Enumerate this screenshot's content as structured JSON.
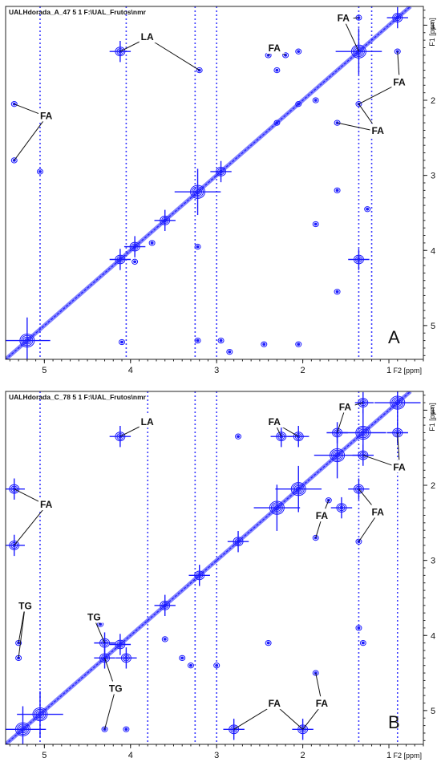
{
  "chart_data": [
    {
      "type": "scatter",
      "panel_label": "A",
      "header": "UALHdorada_A_47  5  1  F:\\UAL_Frutos\\nmr",
      "xlabel": "F2 [ppm]",
      "ylabel": "F1 [ppm]",
      "xlim": [
        5.45,
        0.6
      ],
      "ylim": [
        0.75,
        5.45
      ],
      "xticks": [
        "5",
        "4",
        "3",
        "2",
        "1"
      ],
      "yticks": [
        "1",
        "2",
        "3",
        "4",
        "5"
      ],
      "series_color": "#1a1aff",
      "diagonal_peaks": [
        {
          "x": 5.2,
          "y": 5.2,
          "size": 3
        },
        {
          "x": 4.12,
          "y": 4.12,
          "size": 2
        },
        {
          "x": 3.95,
          "y": 3.95,
          "size": 2
        },
        {
          "x": 3.6,
          "y": 3.6,
          "size": 2
        },
        {
          "x": 3.22,
          "y": 3.22,
          "size": 3
        },
        {
          "x": 2.95,
          "y": 2.95,
          "size": 2
        },
        {
          "x": 2.3,
          "y": 2.3,
          "size": 1
        },
        {
          "x": 2.05,
          "y": 2.05,
          "size": 1
        },
        {
          "x": 1.35,
          "y": 1.35,
          "size": 3
        },
        {
          "x": 0.9,
          "y": 0.9,
          "size": 2
        }
      ],
      "cross_peaks": [
        {
          "x": 4.12,
          "y": 1.35,
          "size": 2
        },
        {
          "x": 1.35,
          "y": 4.12,
          "size": 2
        },
        {
          "x": 2.05,
          "y": 1.35,
          "size": 1
        },
        {
          "x": 1.35,
          "y": 2.05,
          "size": 1
        },
        {
          "x": 0.9,
          "y": 1.35,
          "size": 1
        },
        {
          "x": 1.35,
          "y": 0.9,
          "size": 1
        },
        {
          "x": 2.3,
          "y": 1.6,
          "size": 1
        },
        {
          "x": 1.6,
          "y": 2.3,
          "size": 1
        },
        {
          "x": 5.35,
          "y": 2.05,
          "size": 1
        },
        {
          "x": 5.35,
          "y": 2.8,
          "size": 1
        },
        {
          "x": 5.05,
          "y": 2.95,
          "size": 1
        },
        {
          "x": 2.85,
          "y": 5.35,
          "size": 1
        },
        {
          "x": 3.22,
          "y": 5.2,
          "size": 1
        },
        {
          "x": 2.95,
          "y": 5.2,
          "size": 1
        },
        {
          "x": 3.95,
          "y": 4.15,
          "size": 1
        },
        {
          "x": 3.75,
          "y": 3.9,
          "size": 1
        },
        {
          "x": 3.22,
          "y": 3.95,
          "size": 1
        },
        {
          "x": 2.2,
          "y": 1.4,
          "size": 1
        },
        {
          "x": 2.4,
          "y": 1.4,
          "size": 1
        },
        {
          "x": 3.2,
          "y": 1.6,
          "size": 1
        },
        {
          "x": 1.6,
          "y": 3.2,
          "size": 1
        },
        {
          "x": 1.85,
          "y": 3.65,
          "size": 1
        },
        {
          "x": 1.25,
          "y": 3.45,
          "size": 1
        },
        {
          "x": 1.6,
          "y": 4.55,
          "size": 1
        },
        {
          "x": 2.05,
          "y": 5.25,
          "size": 1
        },
        {
          "x": 2.45,
          "y": 5.25,
          "size": 1
        },
        {
          "x": 4.1,
          "y": 5.22,
          "size": 1
        },
        {
          "x": 1.85,
          "y": 2.0,
          "size": 1
        }
      ],
      "vertical_streaks": [
        5.05,
        4.05,
        3.25,
        3.0,
        1.35,
        1.2
      ],
      "annotations": [
        {
          "text": "LA",
          "x": 3.88,
          "y": 1.2
        },
        {
          "text": "FA",
          "x": 1.6,
          "y": 0.95
        },
        {
          "text": "FA",
          "x": 2.4,
          "y": 1.35
        },
        {
          "text": "FA",
          "x": 0.95,
          "y": 1.8
        },
        {
          "text": "FA",
          "x": 1.2,
          "y": 2.45
        },
        {
          "text": "FA",
          "x": 5.05,
          "y": 2.25
        }
      ]
    },
    {
      "type": "scatter",
      "panel_label": "B",
      "header": "UALHdorada_C_78  5  1  F:\\UAL_Frutos\\nmr",
      "xlabel": "F2 [ppm]",
      "ylabel": "F1 [ppm]",
      "xlim": [
        5.45,
        0.6
      ],
      "ylim": [
        0.75,
        5.45
      ],
      "xticks": [
        "5",
        "4",
        "3",
        "2",
        "1"
      ],
      "yticks": [
        "1",
        "2",
        "3",
        "4",
        "5"
      ],
      "series_color": "#1a1aff",
      "diagonal_peaks": [
        {
          "x": 5.25,
          "y": 5.25,
          "size": 3
        },
        {
          "x": 5.05,
          "y": 5.05,
          "size": 3
        },
        {
          "x": 4.3,
          "y": 4.3,
          "size": 2
        },
        {
          "x": 4.12,
          "y": 4.12,
          "size": 2
        },
        {
          "x": 3.6,
          "y": 3.6,
          "size": 2
        },
        {
          "x": 3.2,
          "y": 3.2,
          "size": 2
        },
        {
          "x": 2.75,
          "y": 2.75,
          "size": 2
        },
        {
          "x": 2.3,
          "y": 2.3,
          "size": 3
        },
        {
          "x": 2.05,
          "y": 2.05,
          "size": 3
        },
        {
          "x": 1.6,
          "y": 1.6,
          "size": 3
        },
        {
          "x": 1.3,
          "y": 1.3,
          "size": 3
        },
        {
          "x": 0.9,
          "y": 0.9,
          "size": 3
        }
      ],
      "cross_peaks": [
        {
          "x": 4.12,
          "y": 1.35,
          "size": 2
        },
        {
          "x": 5.35,
          "y": 2.05,
          "size": 2
        },
        {
          "x": 5.35,
          "y": 2.8,
          "size": 2
        },
        {
          "x": 5.3,
          "y": 4.1,
          "size": 1
        },
        {
          "x": 5.3,
          "y": 4.3,
          "size": 1
        },
        {
          "x": 4.3,
          "y": 5.25,
          "size": 1
        },
        {
          "x": 4.05,
          "y": 5.25,
          "size": 1
        },
        {
          "x": 2.8,
          "y": 5.25,
          "size": 2
        },
        {
          "x": 2.0,
          "y": 5.25,
          "size": 2
        },
        {
          "x": 2.05,
          "y": 1.35,
          "size": 2
        },
        {
          "x": 1.35,
          "y": 2.05,
          "size": 2
        },
        {
          "x": 1.6,
          "y": 1.3,
          "size": 2
        },
        {
          "x": 1.3,
          "y": 1.6,
          "size": 2
        },
        {
          "x": 0.9,
          "y": 1.3,
          "size": 2
        },
        {
          "x": 1.3,
          "y": 0.9,
          "size": 2
        },
        {
          "x": 1.55,
          "y": 2.3,
          "size": 2
        },
        {
          "x": 1.7,
          "y": 2.2,
          "size": 1
        },
        {
          "x": 2.25,
          "y": 1.35,
          "size": 2
        },
        {
          "x": 1.35,
          "y": 2.75,
          "size": 1
        },
        {
          "x": 2.75,
          "y": 1.35,
          "size": 1
        },
        {
          "x": 1.3,
          "y": 4.1,
          "size": 1
        },
        {
          "x": 3.0,
          "y": 4.4,
          "size": 1
        },
        {
          "x": 3.4,
          "y": 4.3,
          "size": 1
        },
        {
          "x": 3.6,
          "y": 4.05,
          "size": 1
        },
        {
          "x": 2.4,
          "y": 4.1,
          "size": 1
        },
        {
          "x": 1.85,
          "y": 4.5,
          "size": 1
        },
        {
          "x": 1.85,
          "y": 2.7,
          "size": 1
        },
        {
          "x": 1.35,
          "y": 3.9,
          "size": 1
        },
        {
          "x": 4.3,
          "y": 4.1,
          "size": 2
        },
        {
          "x": 4.05,
          "y": 4.3,
          "size": 2
        },
        {
          "x": 4.35,
          "y": 3.85,
          "size": 1
        },
        {
          "x": 3.3,
          "y": 4.4,
          "size": 1
        }
      ],
      "vertical_streaks": [
        5.05,
        3.8,
        3.25,
        3.0,
        1.35,
        0.9
      ],
      "annotations": [
        {
          "text": "LA",
          "x": 3.88,
          "y": 1.2
        },
        {
          "text": "FA",
          "x": 1.58,
          "y": 1.0
        },
        {
          "text": "FA",
          "x": 2.4,
          "y": 1.2
        },
        {
          "text": "FA",
          "x": 0.95,
          "y": 1.8
        },
        {
          "text": "FA",
          "x": 1.2,
          "y": 2.4
        },
        {
          "text": "FA",
          "x": 1.85,
          "y": 2.45
        },
        {
          "text": "FA",
          "x": 5.05,
          "y": 2.3
        },
        {
          "text": "TG",
          "x": 5.3,
          "y": 3.65
        },
        {
          "text": "TG",
          "x": 4.5,
          "y": 3.8
        },
        {
          "text": "TG",
          "x": 4.25,
          "y": 4.75
        },
        {
          "text": "FA",
          "x": 2.4,
          "y": 4.95
        },
        {
          "text": "FA",
          "x": 1.85,
          "y": 4.95
        }
      ]
    }
  ]
}
